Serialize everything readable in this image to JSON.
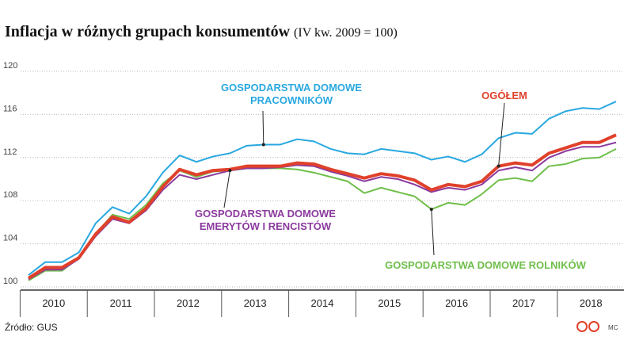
{
  "chart_data": {
    "type": "line",
    "title": "Inflacja w różnych grupach konsumentów",
    "subtitle": "(IV kw. 2009 = 100)",
    "source": "Źródło: GUS",
    "credit": "MC",
    "categories": [
      "2010",
      null,
      null,
      null,
      "2011",
      null,
      null,
      null,
      "2012",
      null,
      null,
      null,
      "2013",
      null,
      null,
      null,
      "2014",
      null,
      null,
      null,
      "2015",
      null,
      null,
      null,
      "2016",
      null,
      null,
      null,
      "2017",
      null,
      null,
      null,
      "2018",
      null,
      null,
      null
    ],
    "ylim": [
      100,
      120
    ],
    "yticks": [
      100,
      104,
      108,
      112,
      116,
      120
    ],
    "grid": true,
    "series": [
      {
        "name": "GOSPODARSTWA DOMOWE ROLNIKÓW",
        "color": "#6fbf4a",
        "values": [
          100.6,
          101.5,
          101.5,
          102.7,
          104.9,
          106.7,
          106.3,
          107.6,
          109.6,
          110.8,
          110.2,
          110.7,
          110.8,
          111.0,
          111.0,
          111.0,
          110.9,
          110.6,
          110.2,
          109.8,
          108.7,
          109.2,
          108.8,
          108.4,
          107.2,
          107.8,
          107.6,
          108.6,
          109.9,
          110.1,
          109.8,
          111.2,
          111.4,
          111.9,
          112.0,
          112.8
        ]
      },
      {
        "name": "GOSPODARSTWA DOMOWE EMERYTÓW I RENCISTÓW",
        "color": "#8b3a9e",
        "values": [
          100.7,
          101.6,
          101.6,
          102.6,
          104.7,
          106.3,
          105.9,
          107.1,
          109.0,
          110.4,
          110.0,
          110.4,
          110.8,
          111.0,
          111.0,
          111.1,
          111.3,
          111.2,
          110.7,
          110.3,
          109.8,
          110.2,
          110.0,
          109.5,
          108.8,
          109.2,
          109.0,
          109.5,
          110.8,
          111.1,
          110.8,
          112.0,
          112.6,
          113.0,
          113.0,
          113.4
        ]
      },
      {
        "name": "GOSPODARSTWA DOMOWE PRACOWNIKÓW",
        "color": "#29a8e0",
        "values": [
          101.1,
          102.3,
          102.3,
          103.2,
          105.9,
          107.4,
          106.8,
          108.4,
          110.6,
          112.2,
          111.6,
          112.1,
          112.4,
          113.1,
          113.2,
          113.2,
          113.7,
          113.5,
          112.8,
          112.4,
          112.3,
          112.8,
          112.6,
          112.4,
          111.8,
          112.1,
          111.6,
          112.3,
          113.8,
          114.3,
          114.2,
          115.6,
          116.3,
          116.6,
          116.5,
          117.2
        ]
      },
      {
        "name": "OGÓŁEM",
        "color": "#e0412b",
        "values": [
          100.8,
          101.8,
          101.8,
          102.7,
          104.9,
          106.5,
          106.0,
          107.3,
          109.3,
          110.9,
          110.4,
          110.8,
          110.9,
          111.2,
          111.2,
          111.2,
          111.5,
          111.4,
          110.9,
          110.5,
          110.1,
          110.5,
          110.3,
          109.9,
          109.0,
          109.5,
          109.3,
          109.8,
          111.2,
          111.5,
          111.3,
          112.4,
          112.9,
          113.4,
          113.4,
          114.1
        ]
      }
    ]
  }
}
